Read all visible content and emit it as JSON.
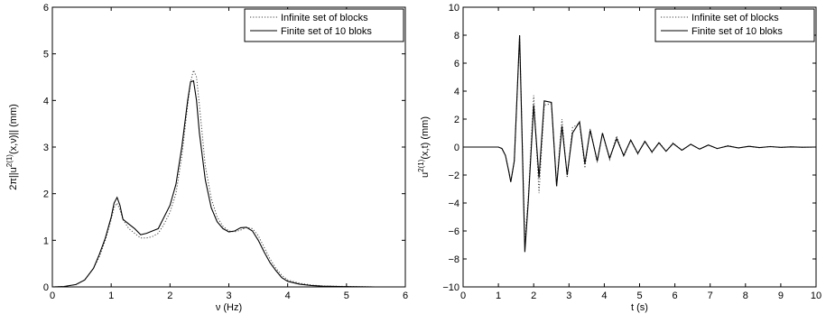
{
  "chart_data": [
    {
      "type": "line",
      "xlabel": "ν (Hz)",
      "ylabel": "2π||u^(2(1))(x,ν)|| (mm)",
      "ylabel_parts": {
        "pre": "2π||u",
        "sup": "2(1)",
        "post": "(x,ν)|| (mm)"
      },
      "xlim": [
        0,
        6
      ],
      "ylim": [
        0,
        6
      ],
      "xticks": [
        "0",
        "1",
        "2",
        "3",
        "4",
        "5",
        "6"
      ],
      "yticks": [
        "0",
        "1",
        "2",
        "3",
        "4",
        "5",
        "6"
      ],
      "grid": false,
      "legend": "top-right",
      "series": [
        {
          "name": "Infinite set of blocks",
          "style": "dotted",
          "x": [
            0,
            0.2,
            0.4,
            0.55,
            0.7,
            0.8,
            0.9,
            1.0,
            1.05,
            1.1,
            1.15,
            1.2,
            1.3,
            1.4,
            1.5,
            1.6,
            1.7,
            1.8,
            1.9,
            2.0,
            2.1,
            2.2,
            2.3,
            2.35,
            2.4,
            2.45,
            2.5,
            2.6,
            2.7,
            2.8,
            2.9,
            3.0,
            3.1,
            3.2,
            3.3,
            3.4,
            3.5,
            3.6,
            3.7,
            3.8,
            3.9,
            4.0,
            4.2,
            4.4,
            4.6,
            5.0,
            5.5,
            6.0
          ],
          "values": [
            0,
            0.01,
            0.05,
            0.15,
            0.4,
            0.65,
            1.0,
            1.45,
            1.7,
            1.8,
            1.65,
            1.45,
            1.25,
            1.15,
            1.05,
            1.05,
            1.08,
            1.15,
            1.35,
            1.6,
            2.0,
            2.8,
            3.9,
            4.4,
            4.65,
            4.5,
            3.9,
            2.6,
            1.9,
            1.5,
            1.3,
            1.2,
            1.18,
            1.22,
            1.28,
            1.25,
            1.1,
            0.85,
            0.6,
            0.4,
            0.25,
            0.15,
            0.08,
            0.04,
            0.02,
            0.01,
            0.0,
            0.0
          ]
        },
        {
          "name": "Finite set of 10 bloks",
          "style": "solid",
          "x": [
            0,
            0.2,
            0.4,
            0.55,
            0.7,
            0.8,
            0.9,
            1.0,
            1.05,
            1.1,
            1.15,
            1.2,
            1.3,
            1.4,
            1.5,
            1.6,
            1.7,
            1.8,
            1.9,
            2.0,
            2.1,
            2.2,
            2.3,
            2.35,
            2.4,
            2.45,
            2.5,
            2.6,
            2.7,
            2.8,
            2.9,
            3.0,
            3.1,
            3.2,
            3.3,
            3.4,
            3.5,
            3.6,
            3.7,
            3.8,
            3.9,
            4.0,
            4.2,
            4.4,
            4.6,
            5.0,
            5.5,
            6.0
          ],
          "values": [
            0,
            0.01,
            0.05,
            0.15,
            0.4,
            0.7,
            1.05,
            1.5,
            1.8,
            1.92,
            1.75,
            1.45,
            1.35,
            1.25,
            1.12,
            1.15,
            1.2,
            1.25,
            1.5,
            1.75,
            2.2,
            3.0,
            4.0,
            4.4,
            4.42,
            4.0,
            3.3,
            2.3,
            1.7,
            1.4,
            1.25,
            1.18,
            1.2,
            1.27,
            1.28,
            1.2,
            1.0,
            0.75,
            0.52,
            0.35,
            0.2,
            0.12,
            0.06,
            0.03,
            0.015,
            0.005,
            0.0,
            0.0
          ]
        }
      ]
    },
    {
      "type": "line",
      "xlabel": "t (s)",
      "ylabel": "u^(2(1))(x,t) (mm)",
      "ylabel_parts": {
        "pre": "u",
        "sup": "2(1)",
        "post": "(x,t) (mm)"
      },
      "xlim": [
        0,
        10
      ],
      "ylim": [
        -10,
        10
      ],
      "xticks": [
        "0",
        "1",
        "2",
        "3",
        "4",
        "5",
        "6",
        "7",
        "8",
        "9",
        "10"
      ],
      "yticks": [
        "−10",
        "−8",
        "−6",
        "−4",
        "−2",
        "0",
        "2",
        "4",
        "6",
        "8",
        "10"
      ],
      "grid": false,
      "legend": "top-right",
      "series": [
        {
          "name": "Infinite set of blocks",
          "style": "dotted",
          "x": [
            0,
            1.0,
            1.1,
            1.2,
            1.3,
            1.35,
            1.45,
            1.6,
            1.75,
            1.85,
            2.0,
            2.15,
            2.3,
            2.5,
            2.65,
            2.8,
            2.95,
            3.1,
            3.3,
            3.45,
            3.6,
            3.8,
            3.95,
            4.15,
            4.35,
            4.55,
            4.75,
            4.95,
            5.15,
            5.35,
            5.55,
            5.75,
            5.95,
            6.2,
            6.45,
            6.7,
            6.95,
            7.2,
            7.5,
            7.8,
            8.1,
            8.4,
            8.7,
            9.0,
            9.3,
            9.6,
            10.0
          ],
          "values": [
            0,
            0,
            -0.1,
            -0.6,
            -1.8,
            -2.5,
            -1.0,
            8.0,
            -6.8,
            -3.5,
            3.7,
            -3.3,
            3.0,
            3.1,
            -2.8,
            2.0,
            -2.2,
            1.4,
            1.7,
            -1.5,
            1.3,
            -1.1,
            1.0,
            -0.9,
            0.8,
            -0.7,
            0.5,
            -0.5,
            0.45,
            -0.4,
            0.35,
            -0.3,
            0.3,
            -0.25,
            0.2,
            -0.15,
            0.15,
            -0.12,
            0.1,
            -0.08,
            0.06,
            -0.05,
            0.04,
            -0.03,
            0.02,
            -0.01,
            0.0
          ]
        },
        {
          "name": "Finite set of 10 bloks",
          "style": "solid",
          "x": [
            0,
            1.0,
            1.1,
            1.2,
            1.3,
            1.35,
            1.45,
            1.6,
            1.75,
            1.85,
            2.0,
            2.15,
            2.3,
            2.5,
            2.65,
            2.8,
            2.95,
            3.1,
            3.3,
            3.45,
            3.6,
            3.8,
            3.95,
            4.15,
            4.35,
            4.55,
            4.75,
            4.95,
            5.15,
            5.35,
            5.55,
            5.75,
            5.95,
            6.2,
            6.45,
            6.7,
            6.95,
            7.2,
            7.5,
            7.8,
            8.1,
            8.4,
            8.7,
            9.0,
            9.3,
            9.6,
            10.0
          ],
          "values": [
            0,
            0,
            -0.1,
            -0.6,
            -1.8,
            -2.5,
            -1.0,
            8.0,
            -7.5,
            -3.8,
            3.0,
            -2.2,
            3.3,
            3.2,
            -2.8,
            1.5,
            -2.0,
            1.0,
            1.8,
            -1.2,
            1.2,
            -1.0,
            1.0,
            -0.8,
            0.6,
            -0.6,
            0.5,
            -0.45,
            0.4,
            -0.35,
            0.3,
            -0.3,
            0.25,
            -0.22,
            0.2,
            -0.15,
            0.15,
            -0.1,
            0.08,
            -0.06,
            0.05,
            -0.04,
            0.03,
            -0.02,
            0.015,
            -0.01,
            0.0
          ]
        }
      ]
    }
  ]
}
